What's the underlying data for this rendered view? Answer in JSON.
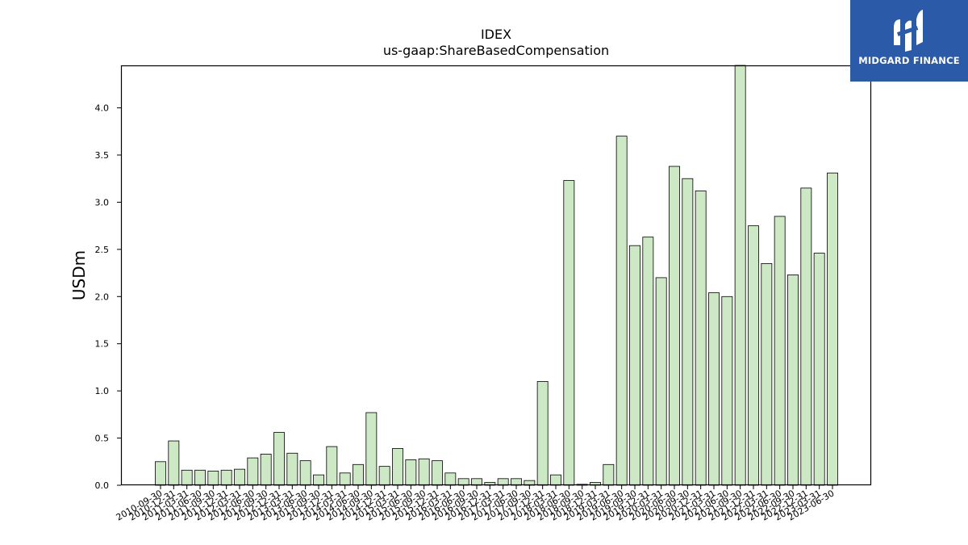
{
  "logo": {
    "text": "MIDGARD FINANCE",
    "background": "#2a5aa8"
  },
  "chart_data": {
    "type": "bar",
    "title": "IDEX",
    "subtitle": "us-gaap:ShareBasedCompensation",
    "xlabel": "",
    "ylabel": "USDm",
    "ylim": [
      0,
      4.45
    ],
    "yticks": [
      "0.0",
      "0.5",
      "1.0",
      "1.5",
      "2.0",
      "2.5",
      "3.0",
      "3.5",
      "4.0"
    ],
    "bar_color": "#cde8c4",
    "bar_edge_color": "#000000",
    "grid": false,
    "categories": [
      "2010-09-30",
      "2010-12-31",
      "2011-03-31",
      "2011-06-30",
      "2011-09-30",
      "2011-12-31",
      "2012-03-31",
      "2012-06-30",
      "2012-09-30",
      "2012-12-31",
      "2013-03-31",
      "2013-06-30",
      "2013-09-30",
      "2013-12-31",
      "2014-03-31",
      "2014-06-30",
      "2014-09-30",
      "2014-12-31",
      "2015-03-31",
      "2015-06-30",
      "2015-09-30",
      "2015-12-31",
      "2016-03-31",
      "2016-06-30",
      "2016-09-30",
      "2016-12-31",
      "2017-03-31",
      "2017-06-30",
      "2017-09-30",
      "2017-12-31",
      "2018-03-31",
      "2018-06-30",
      "2018-09-30",
      "2018-12-31",
      "2019-03-31",
      "2019-06-30",
      "2019-09-30",
      "2019-12-31",
      "2020-03-31",
      "2020-06-30",
      "2020-09-30",
      "2020-12-31",
      "2021-03-31",
      "2021-06-30",
      "2021-09-30",
      "2021-12-31",
      "2022-03-31",
      "2022-06-30",
      "2022-09-30",
      "2022-12-31",
      "2023-03-31",
      "2023-06-30"
    ],
    "values": [
      0.25,
      0.47,
      0.16,
      0.16,
      0.15,
      0.16,
      0.17,
      0.29,
      0.33,
      0.56,
      0.34,
      0.26,
      0.11,
      0.41,
      0.13,
      0.22,
      0.77,
      0.2,
      0.39,
      0.27,
      0.28,
      0.26,
      0.13,
      0.07,
      0.07,
      0.03,
      0.07,
      0.07,
      0.05,
      1.1,
      0.11,
      3.23,
      0.01,
      0.03,
      0.22,
      3.7,
      2.54,
      2.63,
      2.2,
      3.38,
      3.25,
      3.12,
      2.04,
      2.0,
      4.45,
      2.75,
      2.35,
      2.85,
      2.23,
      3.15,
      2.46,
      3.31
    ]
  }
}
